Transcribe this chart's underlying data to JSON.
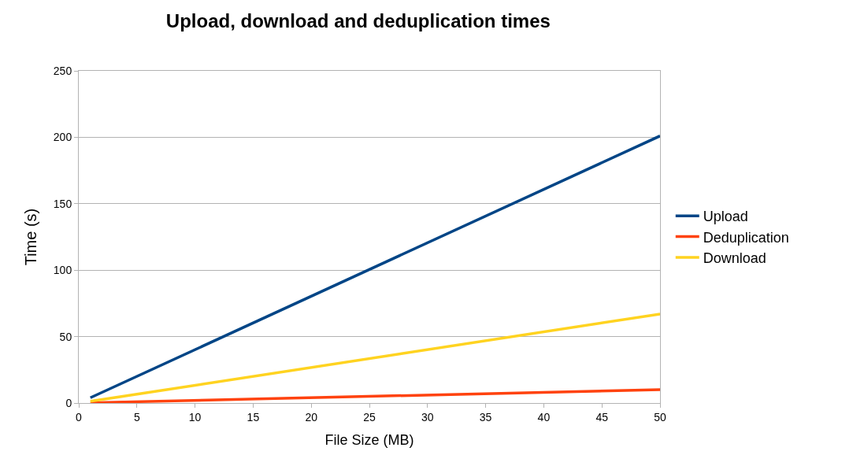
{
  "chart_data": {
    "type": "line",
    "title": "Upload, download and deduplication times",
    "xlabel": "File Size (MB)",
    "ylabel": "Time (s)",
    "x": [
      1,
      50
    ],
    "series": [
      {
        "name": "Upload",
        "color": "#004586",
        "values": [
          4,
          201
        ]
      },
      {
        "name": "Deduplication",
        "color": "#ff420e",
        "values": [
          0.2,
          10
        ]
      },
      {
        "name": "Download",
        "color": "#ffd320",
        "values": [
          1.3,
          67
        ]
      }
    ],
    "xlim": [
      0,
      50
    ],
    "xticks": [
      0,
      5,
      10,
      15,
      20,
      25,
      30,
      35,
      40,
      45,
      50
    ],
    "ylim": [
      0,
      250
    ],
    "yticks": [
      0,
      50,
      100,
      150,
      200,
      250
    ],
    "grid": "y",
    "legend": "right",
    "marker": "none",
    "line_style": "solid"
  }
}
